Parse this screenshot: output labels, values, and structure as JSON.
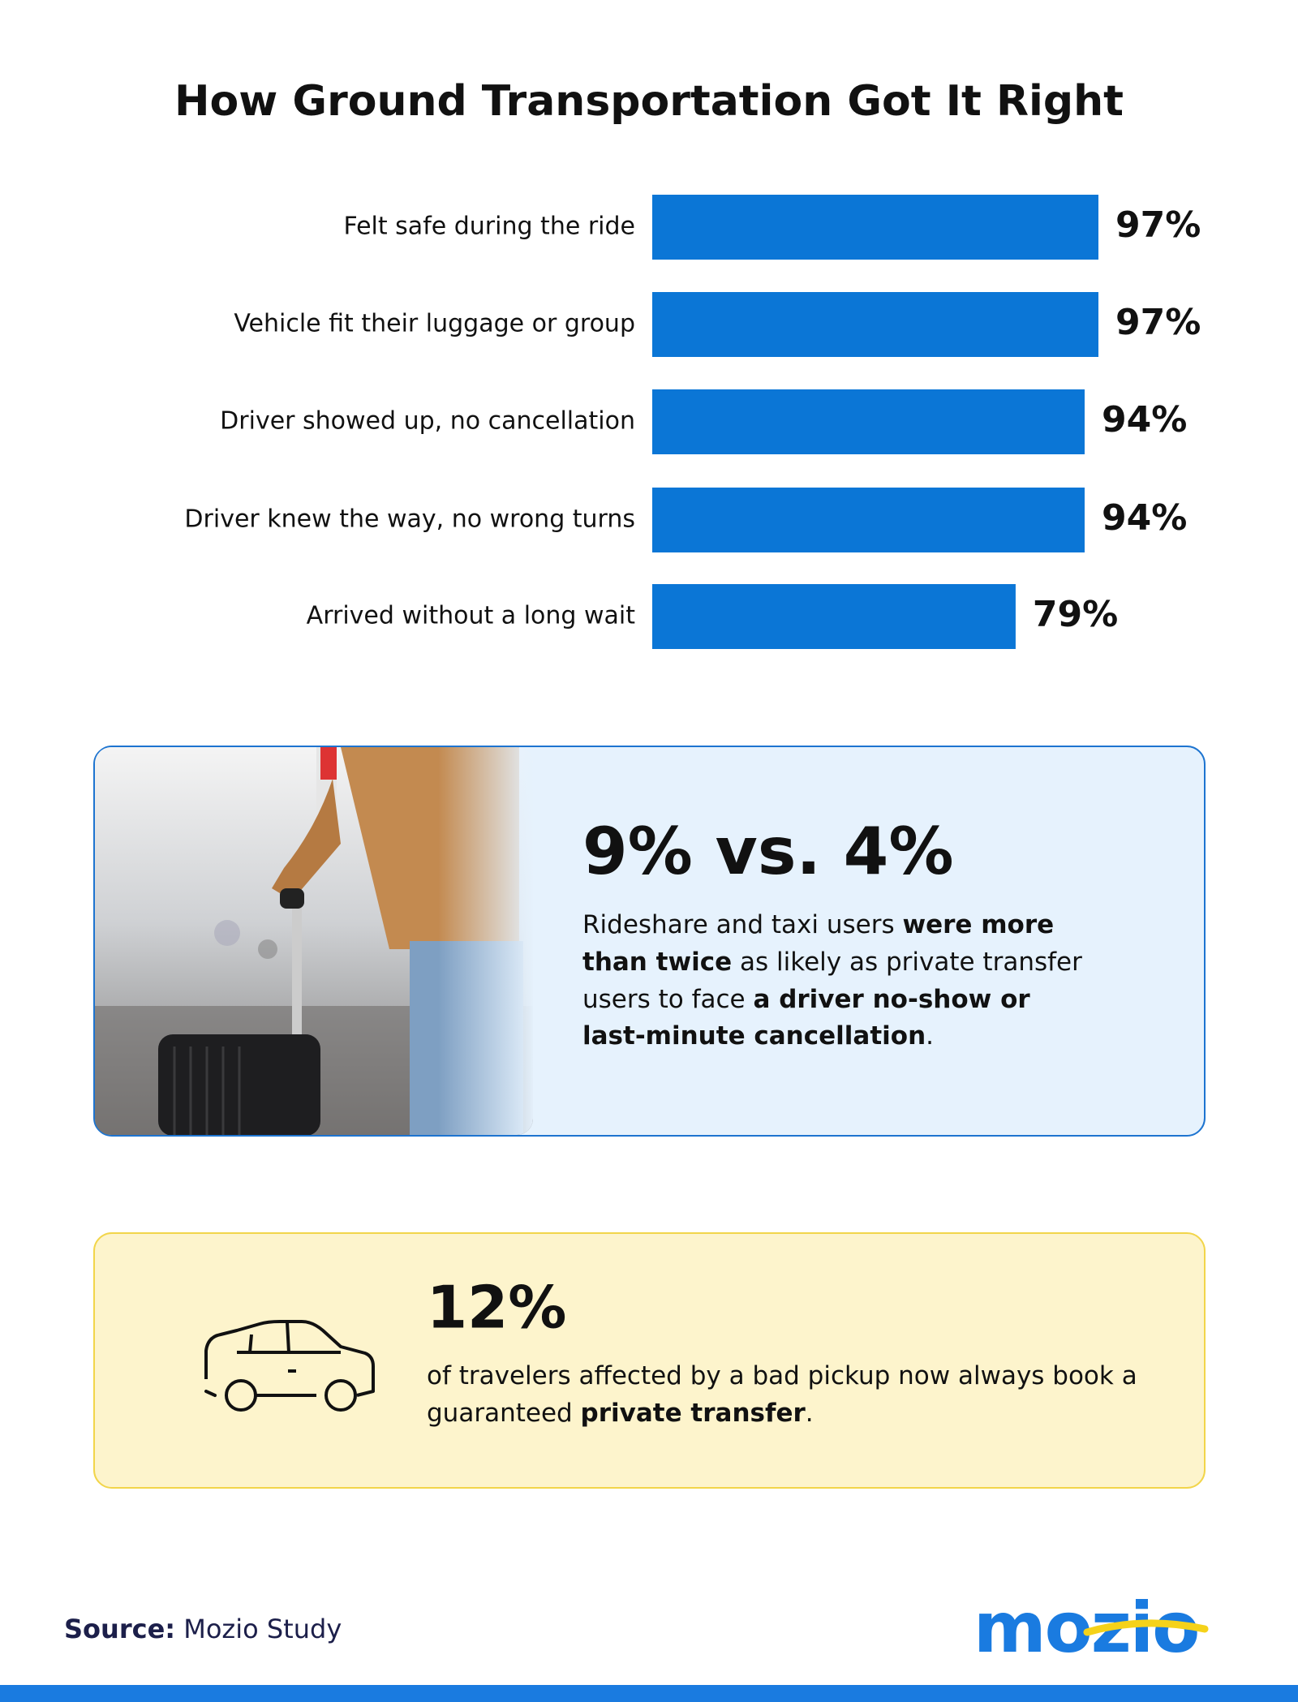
{
  "chart_data": {
    "type": "bar",
    "orientation": "horizontal",
    "title": "How Ground Transportation Got It Right",
    "categories": [
      "Felt safe during the ride",
      "Vehicle fit their luggage or group",
      "Driver showed up, no cancellation",
      "Driver knew the way, no wrong turns",
      "Arrived without a long wait"
    ],
    "values": [
      97,
      97,
      94,
      94,
      79
    ],
    "value_labels": [
      "97%",
      "97%",
      "94%",
      "94%",
      "79%"
    ],
    "color": "#0b76d6",
    "xlim": [
      0,
      100
    ]
  },
  "callouts": [
    {
      "headline": "9% vs. 4%",
      "lines": [
        [
          {
            "text": "Rideshare and taxi users ",
            "bold": false
          },
          {
            "text": "were more",
            "bold": true
          }
        ],
        [
          {
            "text": "than twice",
            "bold": true
          },
          {
            "text": " as likely as private transfer",
            "bold": false
          }
        ],
        [
          {
            "text": "users to face ",
            "bold": false
          },
          {
            "text": "a driver no-show or",
            "bold": true
          }
        ],
        [
          {
            "text": "last-minute cancellation",
            "bold": true
          },
          {
            "text": ".",
            "bold": false
          }
        ]
      ]
    },
    {
      "headline": "12%",
      "lines": [
        [
          {
            "text": "of travelers affected by a bad pickup now always book a",
            "bold": false
          }
        ],
        [
          {
            "text": "guaranteed ",
            "bold": false
          },
          {
            "text": "private transfer",
            "bold": true
          },
          {
            "text": ".",
            "bold": false
          }
        ]
      ]
    }
  ],
  "footer": {
    "source": [
      {
        "text": "Source:",
        "bold": true
      },
      {
        "text": " Mozio Study",
        "bold": false
      }
    ],
    "logo": "mozio"
  }
}
